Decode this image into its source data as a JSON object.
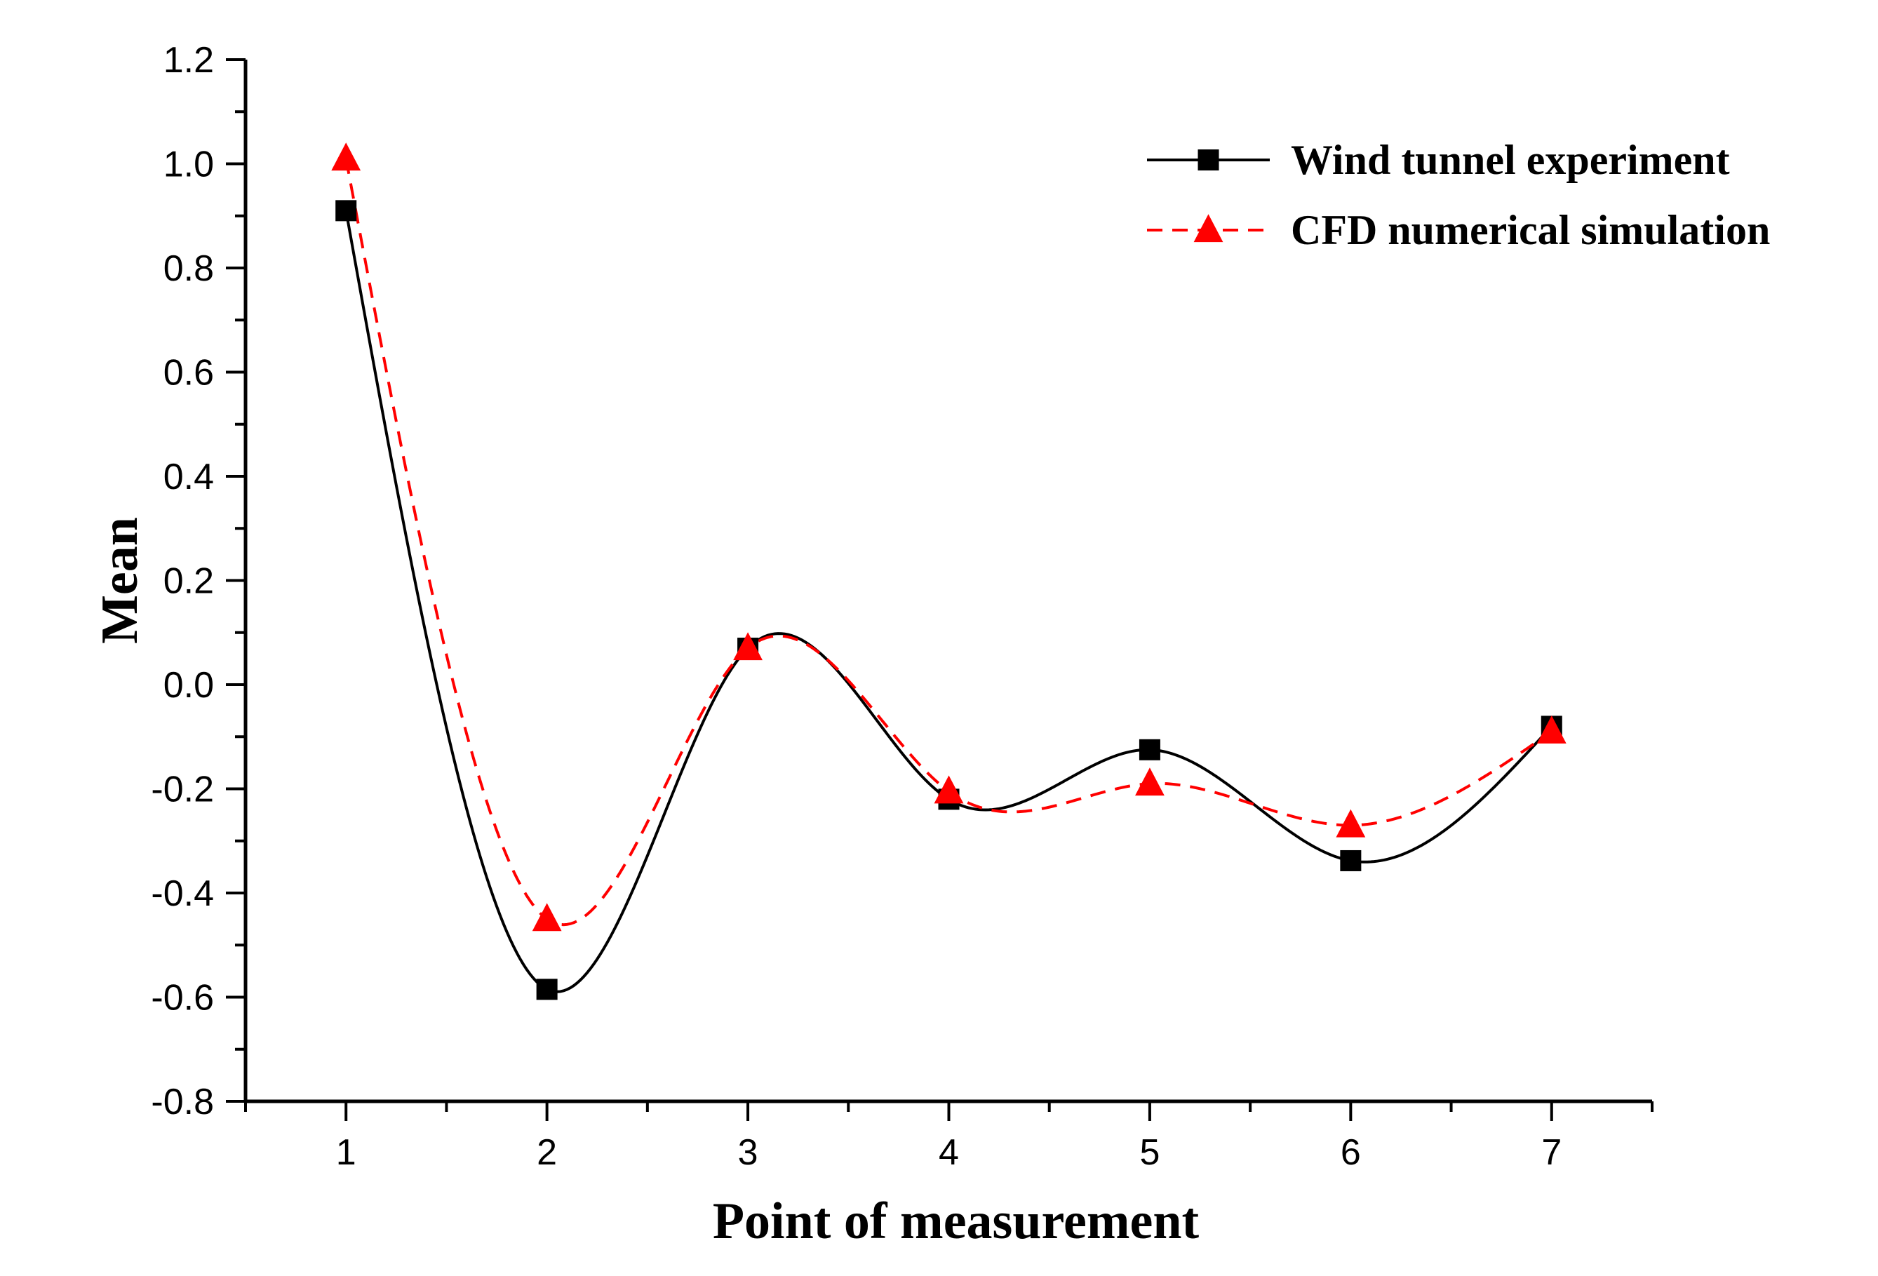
{
  "chart_data": {
    "type": "line",
    "xlabel": "Point of measurement",
    "ylabel": "Mean",
    "x": [
      1,
      2,
      3,
      4,
      5,
      6,
      7
    ],
    "x_ticks": [
      "1",
      "2",
      "3",
      "4",
      "5",
      "6",
      "7"
    ],
    "xlim": [
      0.5,
      7.5
    ],
    "ylim": [
      -0.8,
      1.2
    ],
    "y_ticks": [
      "-0.8",
      "-0.6",
      "-0.4",
      "-0.2",
      "0.0",
      "0.2",
      "0.4",
      "0.6",
      "0.8",
      "1.0",
      "1.2"
    ],
    "y_tick_values": [
      -0.8,
      -0.6,
      -0.4,
      -0.2,
      0.0,
      0.2,
      0.4,
      0.6,
      0.8,
      1.0,
      1.2
    ],
    "grid": false,
    "legend_position": "top-right",
    "series": [
      {
        "name": "Wind tunnel experiment",
        "values": [
          0.91,
          -0.585,
          0.07,
          -0.22,
          -0.125,
          -0.338,
          -0.08
        ],
        "color": "#000000",
        "line_style": "solid",
        "marker": "square"
      },
      {
        "name": "CFD numerical simulation",
        "values": [
          1.01,
          -0.45,
          0.07,
          -0.205,
          -0.19,
          -0.27,
          -0.09
        ],
        "color": "#ff0000",
        "line_style": "dashed",
        "marker": "triangle"
      }
    ]
  }
}
